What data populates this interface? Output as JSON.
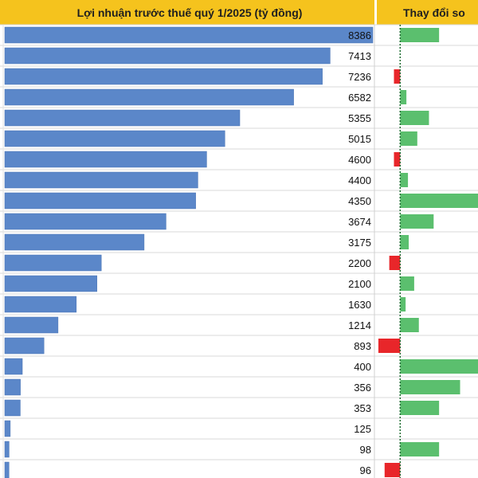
{
  "chart_data": [
    {
      "type": "bar",
      "title": "Lợi nhuận trước thuế quý 1/2025 (tỷ đồng)",
      "values": [
        8386,
        7413,
        7236,
        6582,
        5355,
        5015,
        4600,
        4400,
        4350,
        3674,
        3175,
        2200,
        2100,
        1630,
        1214,
        893,
        400,
        356,
        353,
        125,
        98,
        96
      ],
      "xlim": [
        0,
        8386
      ],
      "colors": {
        "bar": "#5b87c9",
        "header_bg": "#f5c31d"
      }
    },
    {
      "type": "bar",
      "title": "Thay đổi so",
      "values": [
        0.5,
        0,
        -0.08,
        0.08,
        0.37,
        0.22,
        -0.08,
        0.1,
        1.0,
        0.43,
        0.11,
        -0.14,
        0.18,
        0.07,
        0.24,
        -0.28,
        1.0,
        0.77,
        0.5,
        0,
        0.5,
        -0.2
      ],
      "xlim": [
        -0.3,
        1.0
      ],
      "colors": {
        "positive": "#5bbf6e",
        "negative": "#e8262a",
        "zero_line": "#1a6b2f"
      }
    }
  ]
}
